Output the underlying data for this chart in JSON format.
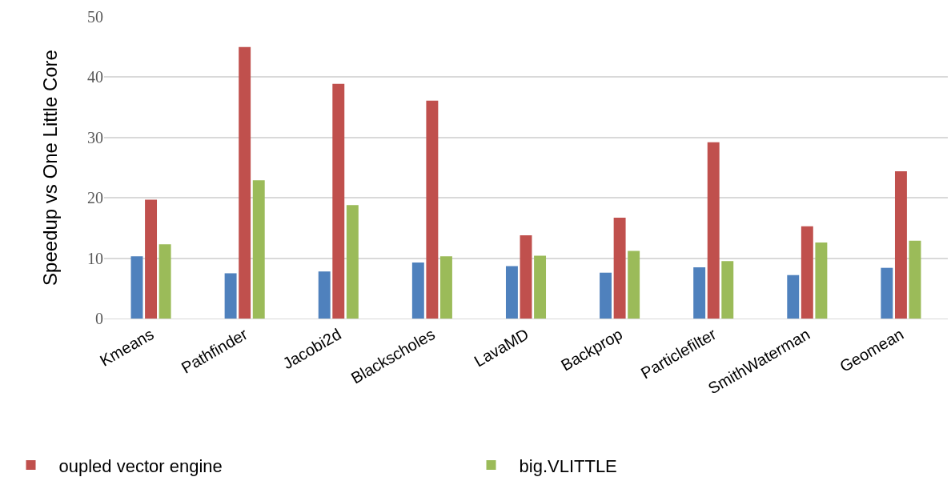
{
  "chart_data": {
    "type": "bar",
    "ylabel": "Speedup vs One Little Core",
    "categories": [
      "Kmeans",
      "Pathfinder",
      "Jacobi2d",
      "Blackscholes",
      "LavaMD",
      "Backprop",
      "Particlefilter",
      "SmithWaterman",
      "Geomean"
    ],
    "series": [
      {
        "color": "#4f81bd",
        "values": [
          10.3,
          7.5,
          7.8,
          9.3,
          8.7,
          7.6,
          8.5,
          7.2,
          8.4
        ]
      },
      {
        "name": "oupled vector engine",
        "color": "#c0504d",
        "values": [
          19.7,
          45.0,
          38.9,
          36.1,
          13.8,
          16.7,
          29.2,
          15.3,
          24.4
        ]
      },
      {
        "name": "big.VLITTLE",
        "color": "#9bbb59",
        "values": [
          12.3,
          22.9,
          18.8,
          10.3,
          10.4,
          11.2,
          9.5,
          12.6,
          12.9
        ]
      }
    ],
    "ylim": [
      0,
      50
    ],
    "yticks": [
      0,
      10,
      20,
      30,
      40,
      50
    ],
    "grid": "y",
    "legend": "bottom"
  }
}
